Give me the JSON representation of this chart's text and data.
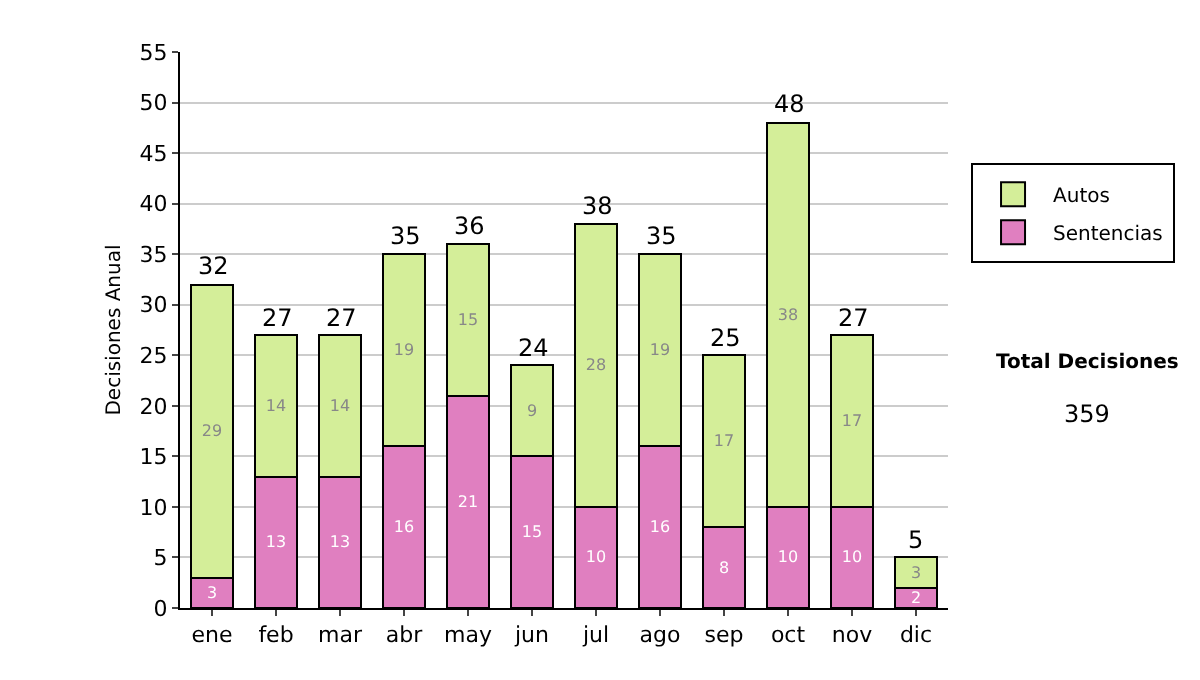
{
  "chart_data": {
    "type": "bar",
    "stacked": true,
    "ylabel": "Decisiones Anual",
    "categories": [
      "ene",
      "feb",
      "mar",
      "abr",
      "may",
      "jun",
      "jul",
      "ago",
      "sep",
      "oct",
      "nov",
      "dic"
    ],
    "series": [
      {
        "name": "Sentencias",
        "color": "#e07fc0",
        "values": [
          3,
          13,
          13,
          16,
          21,
          15,
          10,
          16,
          8,
          10,
          10,
          2
        ]
      },
      {
        "name": "Autos",
        "color": "#d4ee99",
        "values": [
          29,
          14,
          14,
          19,
          15,
          9,
          28,
          19,
          17,
          38,
          17,
          3
        ]
      }
    ],
    "data_labels": true,
    "totals": [
      "32",
      "27",
      "27",
      "35",
      "36",
      "24",
      "38",
      "35",
      "25",
      "48",
      "27",
      "5"
    ],
    "ylim": [
      0,
      55
    ],
    "yticks": [
      0,
      5,
      10,
      15,
      20,
      25,
      30,
      35,
      40,
      45,
      50,
      55
    ],
    "grid": "y",
    "legend": "right",
    "annotations": [
      "Total Decisiones",
      "359"
    ]
  }
}
